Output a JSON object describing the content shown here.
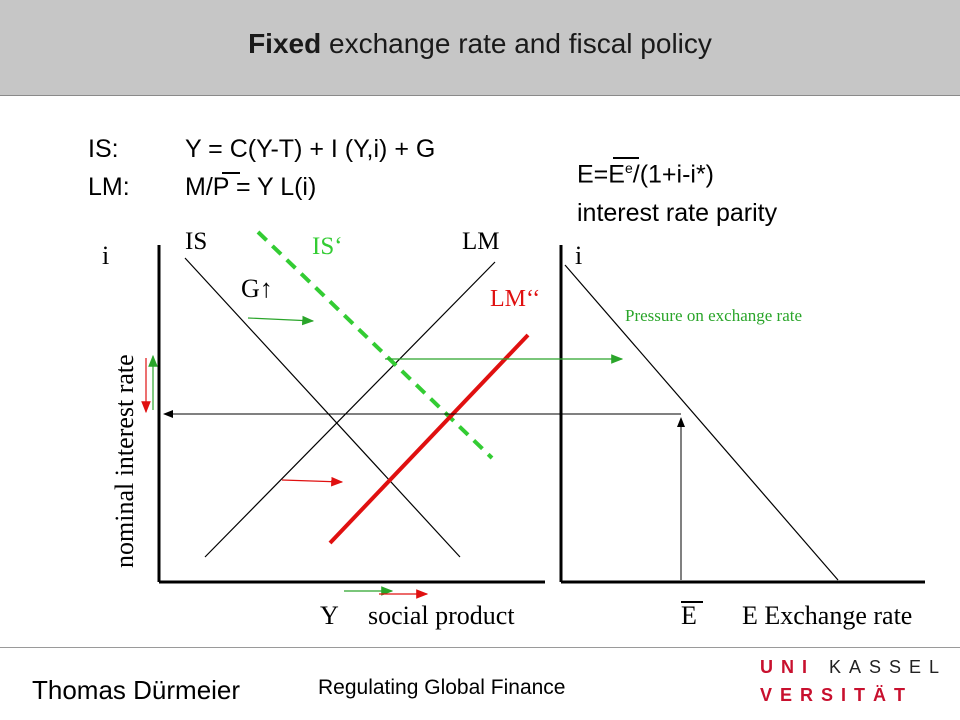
{
  "header": {
    "title_bold": "Fixed",
    "title_rest": " exchange rate and fiscal policy"
  },
  "equations": {
    "is_label": "IS:",
    "is_formula": "Y = C(Y-T) + I (Y,i) + G",
    "lm_label": "LM:",
    "lm_formula": "M/P = Y L(i)",
    "parity_prefix": "E=E",
    "parity_sup": "e",
    "parity_suffix": "/(1+i-i*)",
    "parity_caption": "interest rate parity"
  },
  "left_diagram": {
    "y_axis_symbol": "i",
    "y_axis_label": "nominal interest rate",
    "x_axis_symbol": "Y",
    "x_axis_label": "social product",
    "curve_is": "IS",
    "curve_lm": "LM",
    "curve_is_shifted": "IS‘",
    "curve_lm_shifted": "LM‘‘",
    "shift_label": "G",
    "shift_arrow": "↑"
  },
  "right_diagram": {
    "y_axis_symbol": "i",
    "x_axis_symbol": "E",
    "x_axis_label": "E Exchange rate",
    "annotation": "Pressure on exchange rate"
  },
  "colors": {
    "shifted_is": "#33cc33",
    "shifted_lm": "#e01010",
    "annotation": "#2aa52a",
    "header_bg": "#c6c6c6",
    "logo_red": "#c8102e"
  },
  "footer": {
    "author": "Thomas Dürmeier",
    "course": "Regulating Global Finance",
    "logo_line1_red": "UNI",
    "logo_line1_dark": "KASSEL",
    "logo_line2_red": "VERSITÄT"
  }
}
